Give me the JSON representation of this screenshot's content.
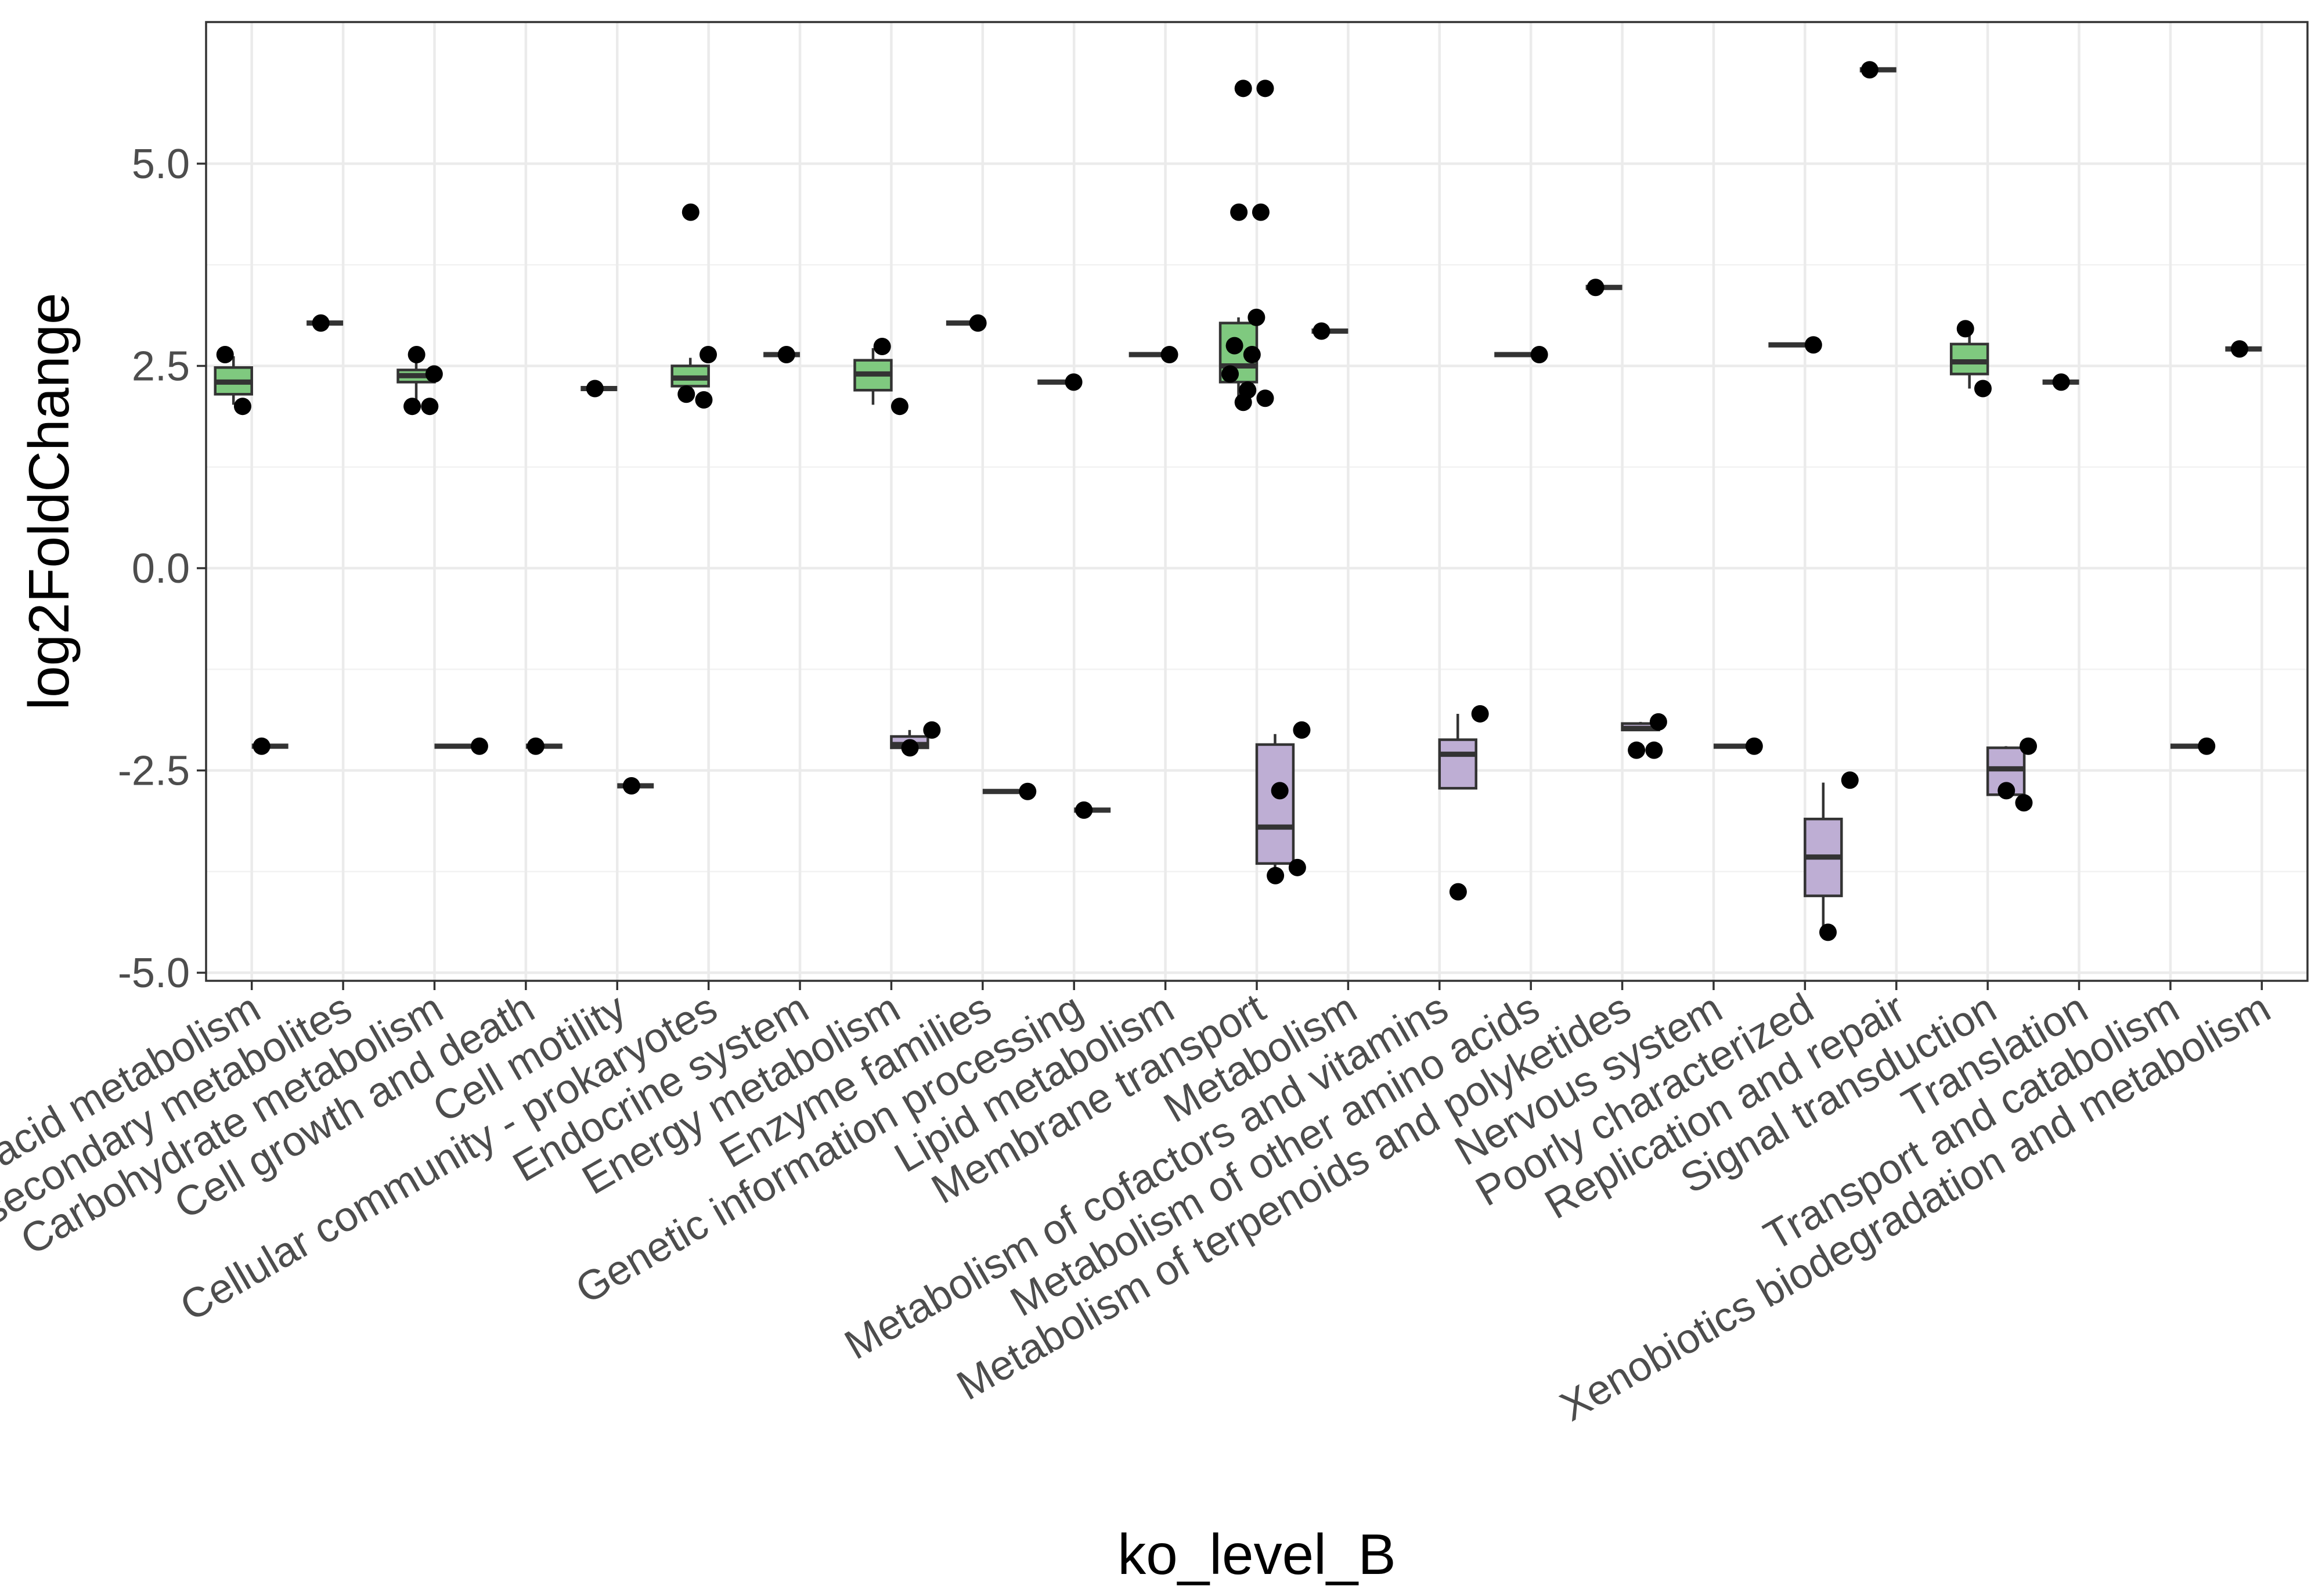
{
  "chart_data": {
    "type": "box",
    "xlabel": "ko_level_B",
    "ylabel": "log2FoldChange",
    "ylim": [
      -5.1,
      6.75
    ],
    "yticks": [
      5.0,
      2.5,
      0.0,
      -2.5,
      -5.0
    ],
    "ytick_labels": [
      "5.0",
      "2.5",
      "0.0",
      "-2.5",
      "-5.0"
    ],
    "grid": true,
    "legend": "none",
    "colors": {
      "up": "#7fc97f",
      "down": "#beaed4",
      "outline": "#333333",
      "points": "#000000"
    },
    "categories": [
      "Amino acid metabolism",
      "Biosynthesis of other secondary metabolites",
      "Carbohydrate metabolism",
      "Cell growth and death",
      "Cell motility",
      "Cellular community - prokaryotes",
      "Endocrine system",
      "Energy metabolism",
      "Enzyme families",
      "Genetic information processing",
      "Lipid metabolism",
      "Membrane transport",
      "Metabolism",
      "Metabolism of cofactors and vitamins",
      "Metabolism of other amino acids",
      "Metabolism of terpenoids and polyketides",
      "Nervous system",
      "Poorly characterized",
      "Replication and repair",
      "Signal transduction",
      "Translation",
      "Transport and catabolism",
      "Xenobiotics biodegradation and metabolism"
    ],
    "series": [
      {
        "group": "up",
        "boxes": [
          {
            "cat": 0,
            "lower": 2.02,
            "q1": 2.15,
            "median": 2.3,
            "q3": 2.48,
            "upper": 2.62,
            "points": [
              2.64,
              2.0
            ]
          },
          {
            "cat": 1,
            "lower": 3.03,
            "q1": 3.03,
            "median": 3.03,
            "q3": 3.03,
            "upper": 3.03,
            "points": [
              3.03
            ]
          },
          {
            "cat": 2,
            "lower": 2.02,
            "q1": 2.3,
            "median": 2.38,
            "q3": 2.45,
            "upper": 2.62,
            "points": [
              2.64,
              2.4,
              2.0,
              2.0
            ]
          },
          {
            "cat": 4,
            "lower": 2.22,
            "q1": 2.22,
            "median": 2.22,
            "q3": 2.22,
            "upper": 2.22,
            "points": [
              2.22
            ]
          },
          {
            "cat": 5,
            "lower": 2.1,
            "q1": 2.25,
            "median": 2.35,
            "q3": 2.5,
            "upper": 2.6,
            "points": [
              4.4,
              2.64,
              2.15,
              2.08
            ]
          },
          {
            "cat": 6,
            "lower": 2.64,
            "q1": 2.64,
            "median": 2.64,
            "q3": 2.64,
            "upper": 2.64,
            "points": [
              2.64
            ]
          },
          {
            "cat": 7,
            "lower": 2.02,
            "q1": 2.2,
            "median": 2.4,
            "q3": 2.57,
            "upper": 2.72,
            "points": [
              2.74,
              2.0
            ]
          },
          {
            "cat": 8,
            "lower": 3.03,
            "q1": 3.03,
            "median": 3.03,
            "q3": 3.03,
            "upper": 3.03,
            "points": [
              3.03
            ]
          },
          {
            "cat": 9,
            "lower": 2.3,
            "q1": 2.3,
            "median": 2.3,
            "q3": 2.3,
            "upper": 2.3,
            "points": [
              2.3
            ]
          },
          {
            "cat": 10,
            "lower": 2.64,
            "q1": 2.64,
            "median": 2.64,
            "q3": 2.64,
            "upper": 2.64,
            "points": [
              2.64
            ]
          },
          {
            "cat": 11,
            "lower": 2.1,
            "q1": 2.3,
            "median": 2.5,
            "q3": 3.03,
            "upper": 3.1,
            "points": [
              5.93,
              5.93,
              4.4,
              4.4,
              3.1,
              2.75,
              2.64,
              2.4,
              2.2,
              2.1,
              2.05
            ]
          },
          {
            "cat": 12,
            "lower": 2.93,
            "q1": 2.93,
            "median": 2.93,
            "q3": 2.93,
            "upper": 2.93,
            "points": [
              2.93
            ]
          },
          {
            "cat": 14,
            "lower": 2.64,
            "q1": 2.64,
            "median": 2.64,
            "q3": 2.64,
            "upper": 2.64,
            "points": [
              2.64
            ]
          },
          {
            "cat": 15,
            "lower": 3.47,
            "q1": 3.47,
            "median": 3.47,
            "q3": 3.47,
            "upper": 3.47,
            "points": [
              3.47
            ]
          },
          {
            "cat": 17,
            "lower": 2.76,
            "q1": 2.76,
            "median": 2.76,
            "q3": 2.76,
            "upper": 2.76,
            "points": [
              2.76
            ]
          },
          {
            "cat": 18,
            "lower": 6.16,
            "q1": 6.16,
            "median": 6.16,
            "q3": 6.16,
            "upper": 6.16,
            "points": [
              6.16
            ]
          },
          {
            "cat": 19,
            "lower": 2.22,
            "q1": 2.4,
            "median": 2.55,
            "q3": 2.77,
            "upper": 2.92,
            "points": [
              2.96,
              2.22
            ]
          },
          {
            "cat": 20,
            "lower": 2.3,
            "q1": 2.3,
            "median": 2.3,
            "q3": 2.3,
            "upper": 2.3,
            "points": [
              2.3
            ]
          },
          {
            "cat": 22,
            "lower": 2.71,
            "q1": 2.71,
            "median": 2.71,
            "q3": 2.71,
            "upper": 2.71,
            "points": [
              2.71
            ]
          }
        ]
      },
      {
        "group": "down",
        "boxes": [
          {
            "cat": 0,
            "lower": -2.2,
            "q1": -2.2,
            "median": -2.2,
            "q3": -2.2,
            "upper": -2.2,
            "points": [
              -2.2
            ]
          },
          {
            "cat": 2,
            "lower": -2.2,
            "q1": -2.2,
            "median": -2.2,
            "q3": -2.2,
            "upper": -2.2,
            "points": [
              -2.2
            ]
          },
          {
            "cat": 3,
            "lower": -2.2,
            "q1": -2.2,
            "median": -2.2,
            "q3": -2.2,
            "upper": -2.2,
            "points": [
              -2.2
            ]
          },
          {
            "cat": 4,
            "lower": -2.69,
            "q1": -2.69,
            "median": -2.69,
            "q3": -2.69,
            "upper": -2.69,
            "points": [
              -2.69
            ]
          },
          {
            "cat": 7,
            "lower": -2.22,
            "q1": -2.22,
            "median": -2.18,
            "q3": -2.08,
            "upper": -2.0,
            "points": [
              -2.0,
              -2.22
            ]
          },
          {
            "cat": 8,
            "lower": -2.76,
            "q1": -2.76,
            "median": -2.76,
            "q3": -2.76,
            "upper": -2.76,
            "points": [
              -2.76
            ]
          },
          {
            "cat": 9,
            "lower": -2.99,
            "q1": -2.99,
            "median": -2.99,
            "q3": -2.99,
            "upper": -2.99,
            "points": [
              -2.99
            ]
          },
          {
            "cat": 11,
            "lower": -3.8,
            "q1": -3.65,
            "median": -3.2,
            "q3": -2.18,
            "upper": -2.05,
            "points": [
              -2.0,
              -2.75,
              -3.7,
              -3.8
            ]
          },
          {
            "cat": 13,
            "lower": -2.72,
            "q1": -2.72,
            "median": -2.3,
            "q3": -2.12,
            "upper": -1.8,
            "points": [
              -1.8,
              -4.0
            ]
          },
          {
            "cat": 15,
            "lower": -2.0,
            "q1": -2.0,
            "median": -1.98,
            "q3": -1.92,
            "upper": -1.9,
            "points": [
              -1.9,
              -2.25,
              -2.25
            ]
          },
          {
            "cat": 16,
            "lower": -2.2,
            "q1": -2.2,
            "median": -2.2,
            "q3": -2.2,
            "upper": -2.2,
            "points": [
              -2.2
            ]
          },
          {
            "cat": 17,
            "lower": -4.5,
            "q1": -4.05,
            "median": -3.57,
            "q3": -3.1,
            "upper": -2.65,
            "points": [
              -2.62,
              -4.5
            ]
          },
          {
            "cat": 19,
            "lower": -2.85,
            "q1": -2.8,
            "median": -2.48,
            "q3": -2.22,
            "upper": -2.2,
            "points": [
              -2.2,
              -2.75,
              -2.9
            ]
          },
          {
            "cat": 21,
            "lower": -2.2,
            "q1": -2.2,
            "median": -2.2,
            "q3": -2.2,
            "upper": -2.2,
            "points": [
              -2.2
            ]
          }
        ]
      }
    ]
  }
}
